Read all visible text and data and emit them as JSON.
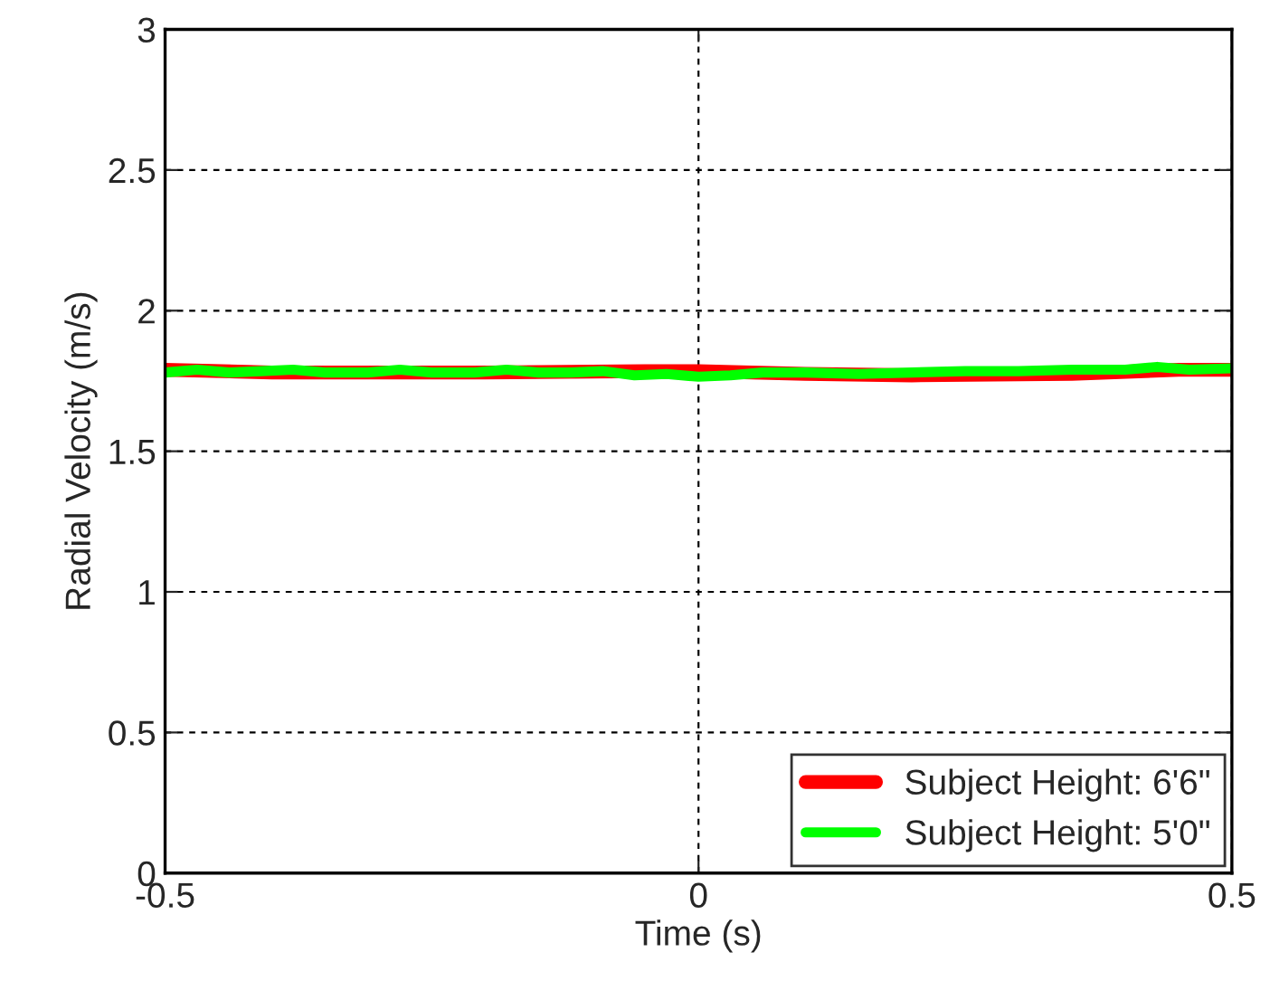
{
  "chart_data": {
    "type": "line",
    "xlabel": "Time (s)",
    "ylabel": "Radial Velocity (m/s)",
    "xlim": [
      -0.5,
      0.5
    ],
    "xticks": [
      -0.5,
      0,
      0.5
    ],
    "ylim": [
      0,
      3
    ],
    "yticks": [
      0,
      0.5,
      1,
      1.5,
      2,
      2.5,
      3
    ],
    "grid": true,
    "legend": "bottom right",
    "line_style": "solid",
    "marker": "none",
    "series": [
      {
        "name": "Subject Height: 6'6\"",
        "color": "#ff0000",
        "x": [
          -0.5,
          -0.4,
          -0.2,
          -0.05,
          0,
          0.1,
          0.2,
          0.35,
          0.45,
          0.5
        ],
        "values": [
          1.79,
          1.78,
          1.78,
          1.785,
          1.785,
          1.775,
          1.77,
          1.775,
          1.79,
          1.79
        ]
      },
      {
        "name": "Subject Height: 5'0\"",
        "color": "#00ff00",
        "x": [
          -0.5,
          -0.47,
          -0.44,
          -0.41,
          -0.38,
          -0.35,
          -0.31,
          -0.28,
          -0.25,
          -0.21,
          -0.18,
          -0.15,
          -0.12,
          -0.09,
          -0.06,
          -0.03,
          0,
          0.03,
          0.06,
          0.1,
          0.15,
          0.2,
          0.25,
          0.3,
          0.35,
          0.4,
          0.43,
          0.46,
          0.5
        ],
        "values": [
          1.78,
          1.79,
          1.78,
          1.785,
          1.79,
          1.78,
          1.78,
          1.79,
          1.78,
          1.78,
          1.79,
          1.78,
          1.78,
          1.785,
          1.77,
          1.775,
          1.765,
          1.77,
          1.78,
          1.78,
          1.775,
          1.78,
          1.785,
          1.785,
          1.79,
          1.79,
          1.8,
          1.79,
          1.795
        ]
      }
    ]
  }
}
